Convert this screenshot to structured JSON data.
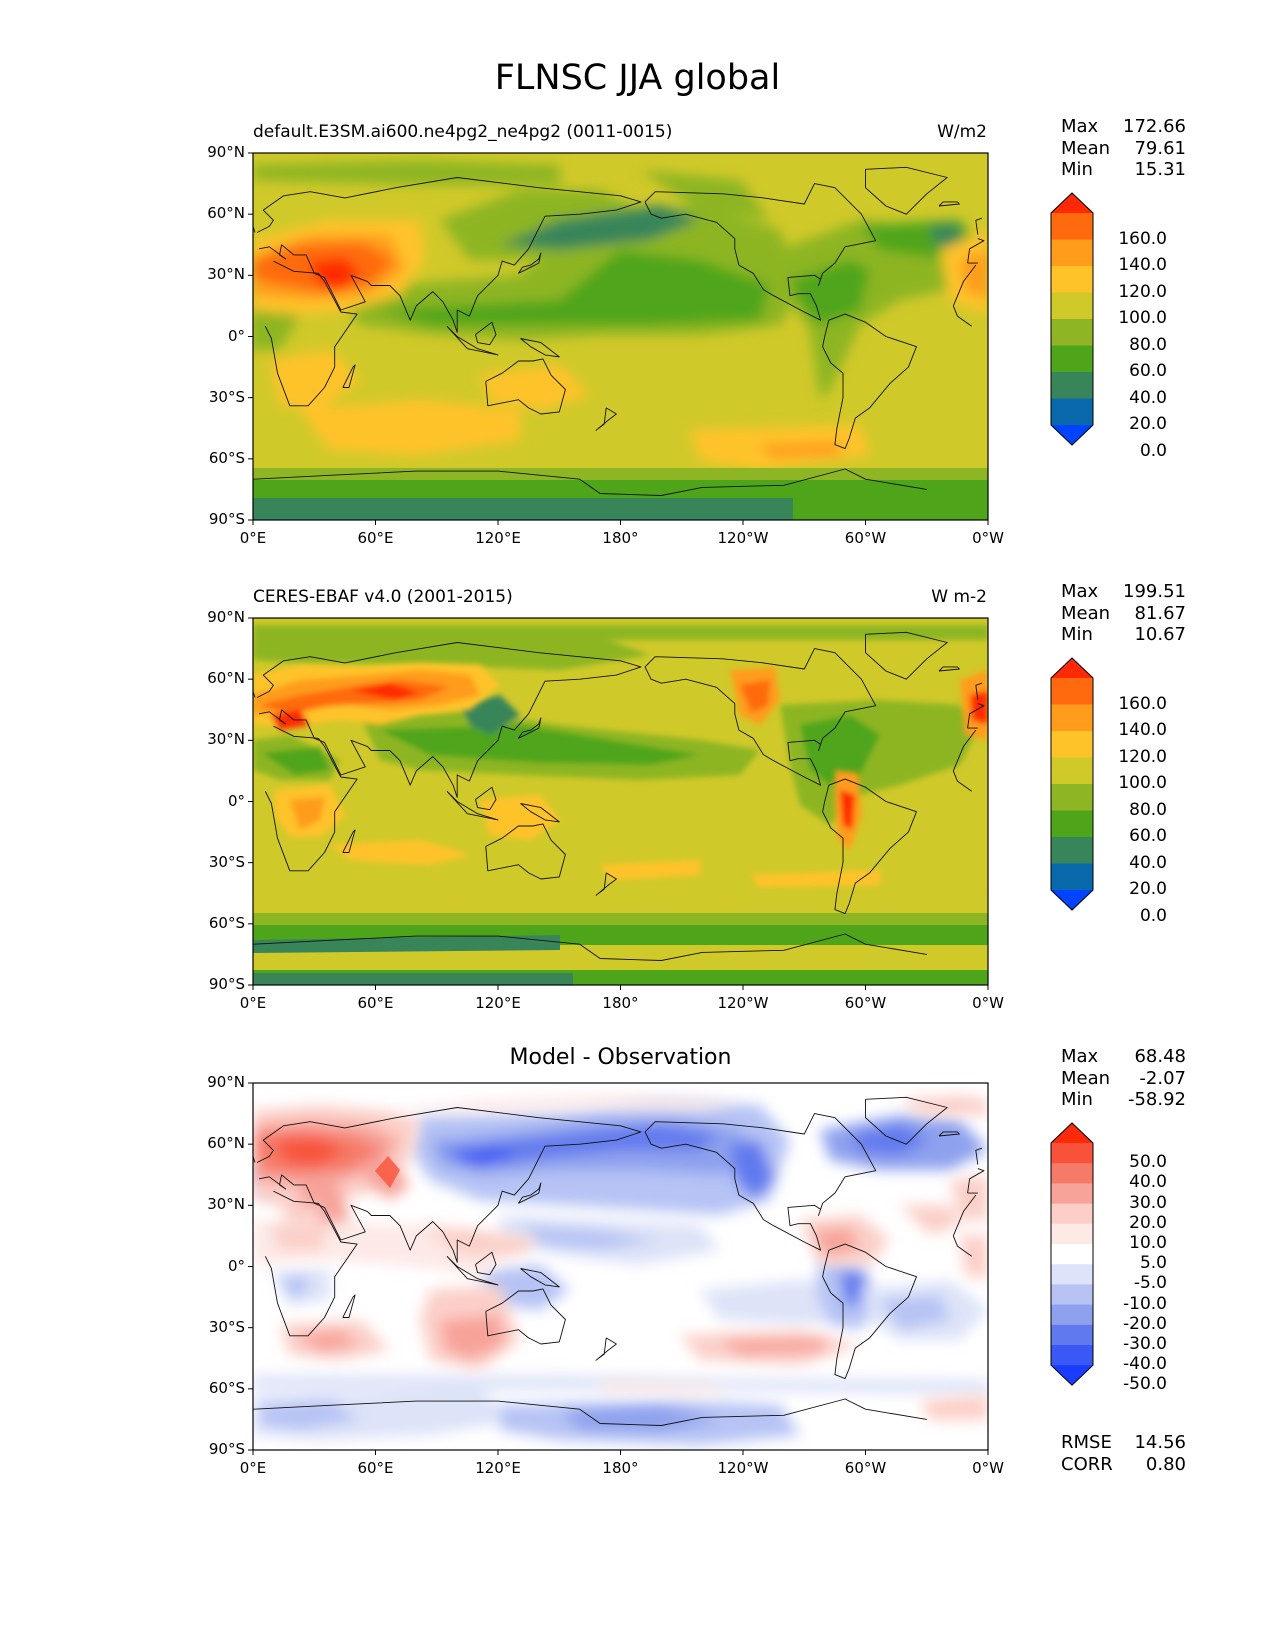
{
  "title": "FLNSC JJA global",
  "lon_ticks": [
    "0°E",
    "60°E",
    "120°E",
    "180°",
    "120°W",
    "60°W",
    "0°W"
  ],
  "lat_ticks": [
    "90°N",
    "60°N",
    "30°N",
    "0°",
    "30°S",
    "60°S",
    "90°S"
  ],
  "panels": [
    {
      "left_title": "default.E3SM.ai600.ne4pg2_ne4pg2 (0011-0015)",
      "center_title": "",
      "units": "W/m2",
      "stats": [
        {
          "label": "Max",
          "value": "172.66"
        },
        {
          "label": "Mean",
          "value": "79.61"
        },
        {
          "label": "Min",
          "value": "15.31"
        }
      ],
      "colorbar_labels": [
        "160.0",
        "140.0",
        "120.0",
        "100.0",
        "80.0",
        "60.0",
        "40.0",
        "20.0",
        "0.0"
      ],
      "colorbar_colors": [
        "#ff2a05",
        "#ff6a0e",
        "#ff9c1c",
        "#ffc32a",
        "#d0c92a",
        "#8db524",
        "#4fa51a",
        "#38855a",
        "#0a69aa",
        "#0044ff"
      ],
      "field_colors": {
        "background": "#d0c92a",
        "green": "#8db524",
        "dkgreen": "#4fa51a",
        "teal": "#38855a",
        "yellow": "#ffc32a",
        "orange": "#ff9c1c",
        "dkorange": "#ff6a0e",
        "red": "#ff2a05",
        "blue": "#0a69aa"
      }
    },
    {
      "left_title": "CERES-EBAF v4.0 (2001-2015)",
      "center_title": "",
      "units": "W m-2",
      "stats": [
        {
          "label": "Max",
          "value": "199.51"
        },
        {
          "label": "Mean",
          "value": "81.67"
        },
        {
          "label": "Min",
          "value": "10.67"
        }
      ],
      "colorbar_labels": [
        "160.0",
        "140.0",
        "120.0",
        "100.0",
        "80.0",
        "60.0",
        "40.0",
        "20.0",
        "0.0"
      ],
      "colorbar_colors": [
        "#ff2a05",
        "#ff6a0e",
        "#ff9c1c",
        "#ffc32a",
        "#d0c92a",
        "#8db524",
        "#4fa51a",
        "#38855a",
        "#0a69aa",
        "#0044ff"
      ]
    },
    {
      "left_title": "",
      "center_title": "Model - Observation",
      "units": "",
      "stats": [
        {
          "label": "Max",
          "value": "68.48"
        },
        {
          "label": "Mean",
          "value": "-2.07"
        },
        {
          "label": "Min",
          "value": "-58.92"
        }
      ],
      "colorbar_labels": [
        "50.0",
        "40.0",
        "30.0",
        "20.0",
        "10.0",
        "5.0",
        "-5.0",
        "-10.0",
        "-20.0",
        "-30.0",
        "-40.0",
        "-50.0"
      ],
      "colorbar_colors": [
        "#ff2a0a",
        "#f8523a",
        "#f57a68",
        "#f7a39a",
        "#fbcfc8",
        "#fde9e6",
        "#ffffff",
        "#dde3f8",
        "#b6c3f4",
        "#8ea1ee",
        "#6179ee",
        "#3a58f5",
        "#1a3cff"
      ],
      "extra_stats": [
        {
          "label": "RMSE",
          "value": "14.56"
        },
        {
          "label": "CORR",
          "value": "0.80"
        }
      ]
    }
  ]
}
